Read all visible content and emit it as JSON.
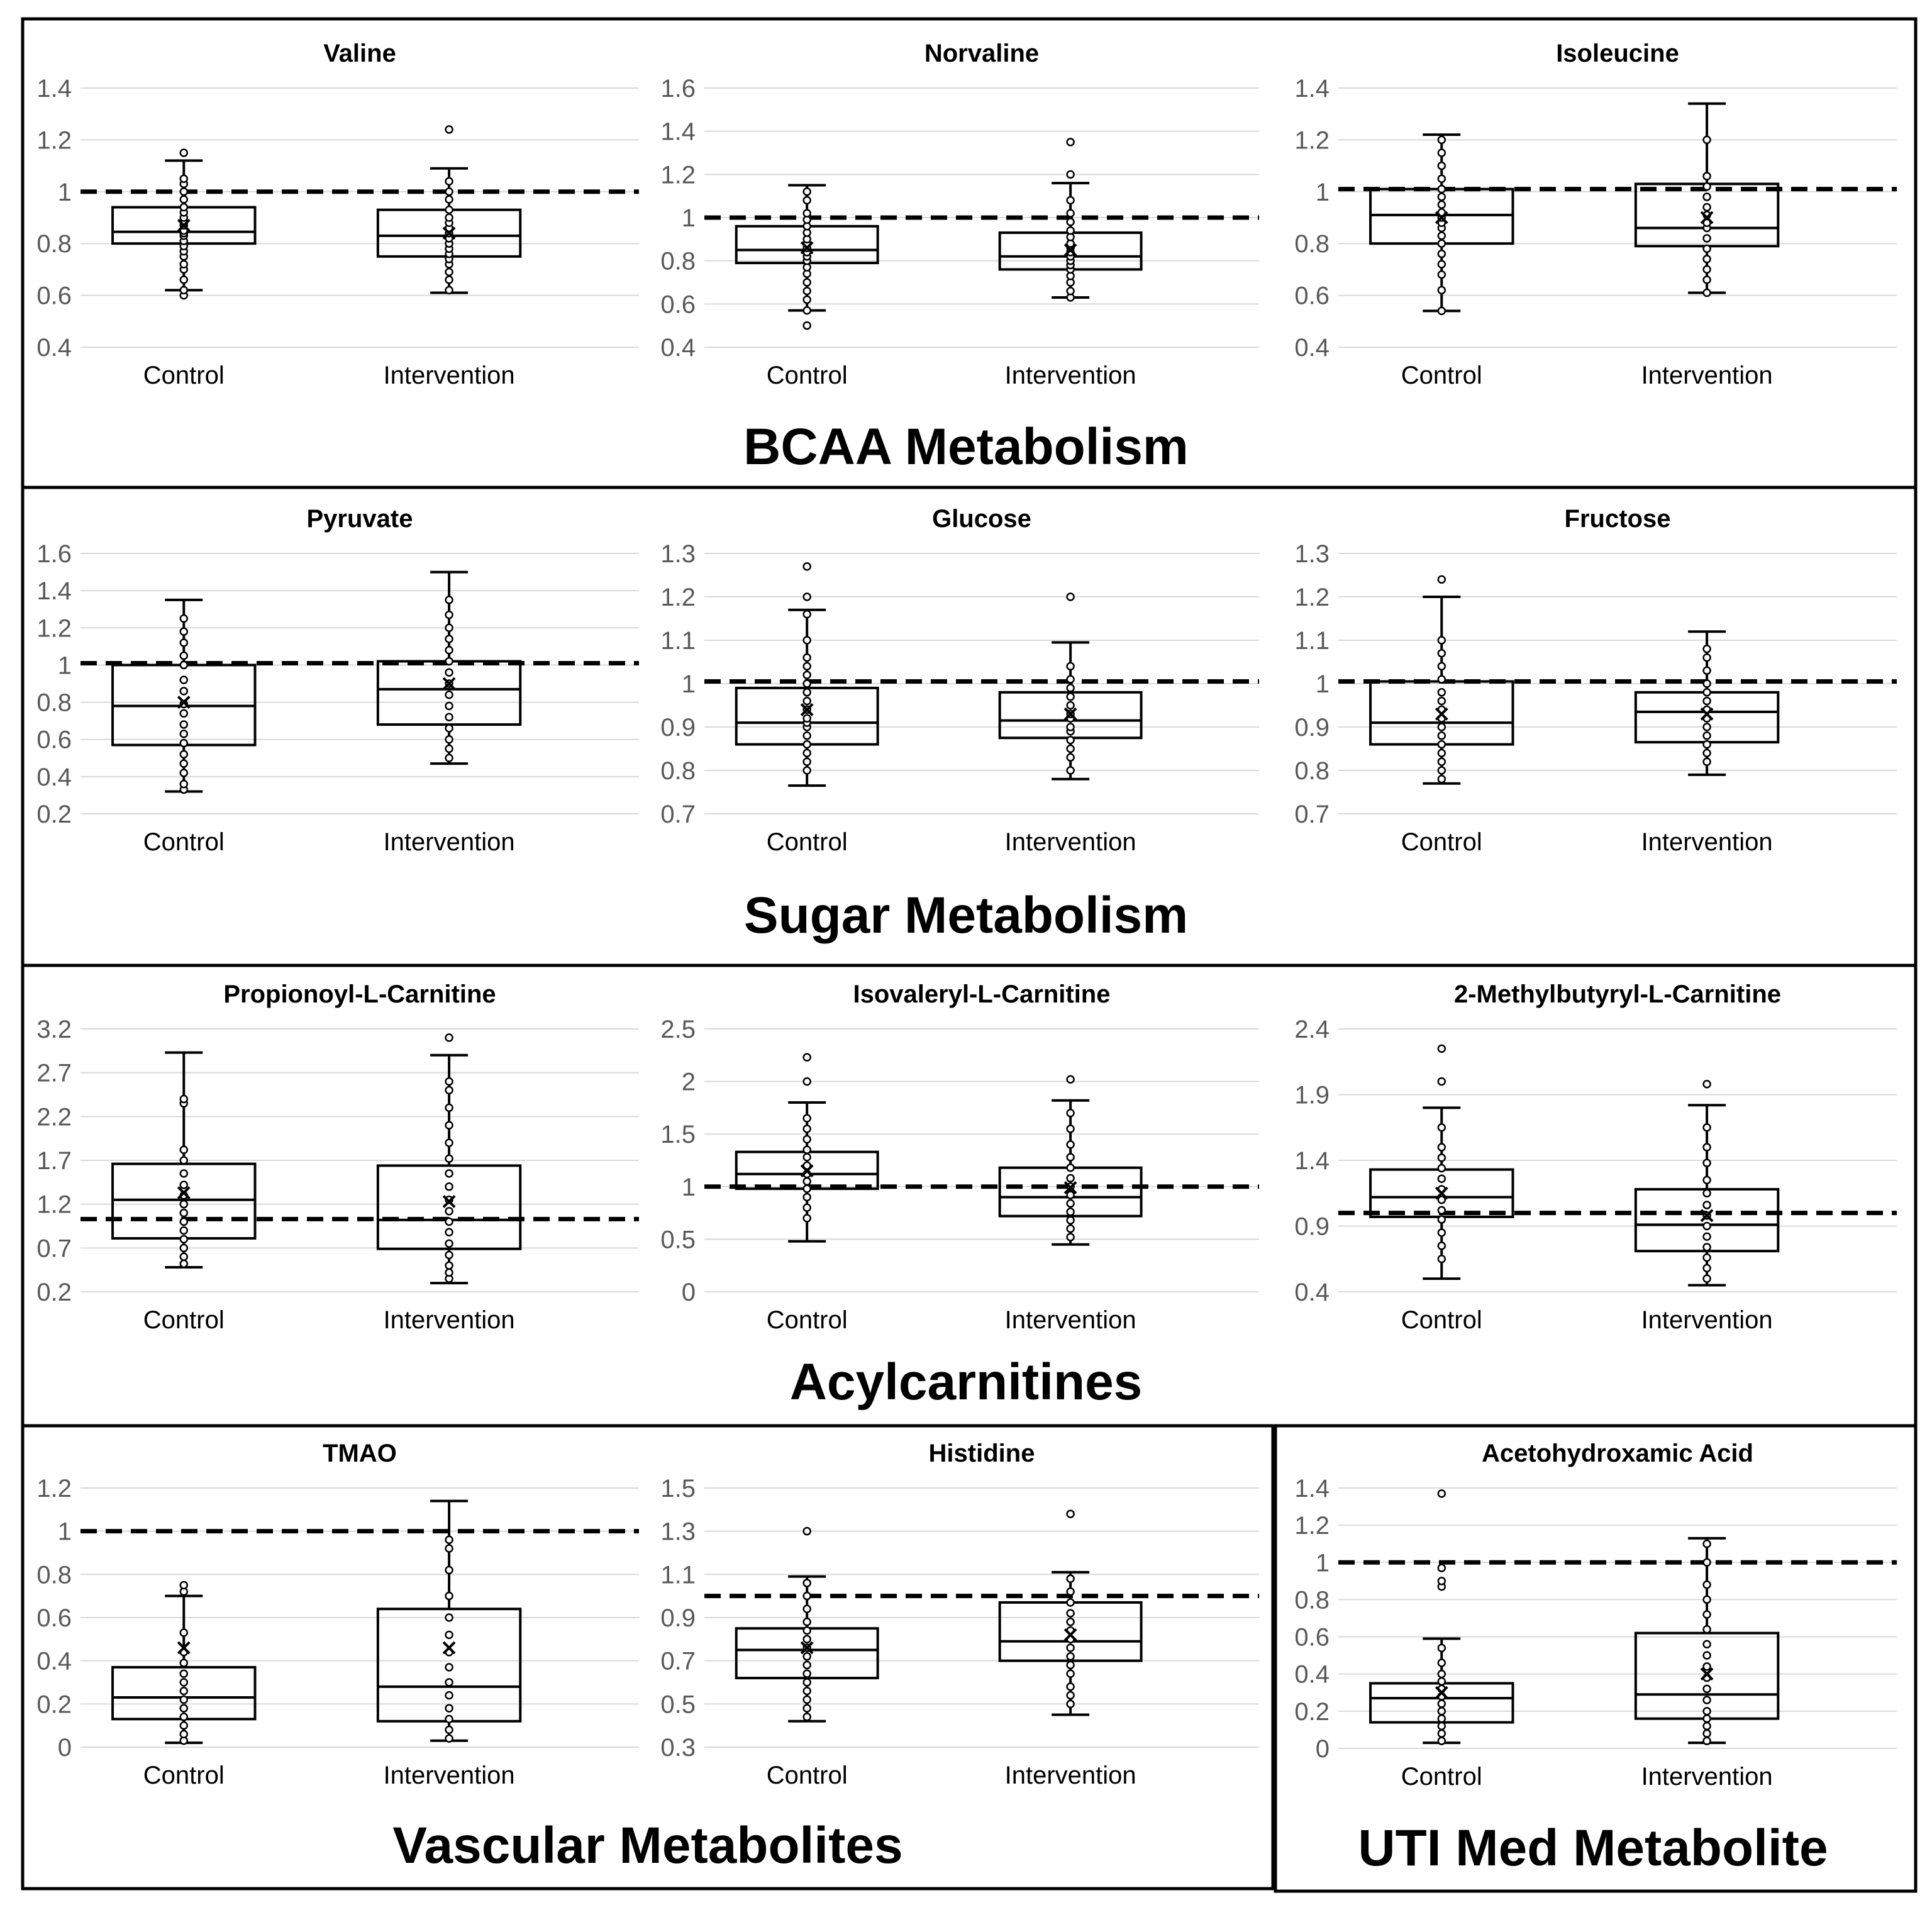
{
  "sections": [
    {
      "id": "bcaa",
      "title": "BCAA Metabolism"
    },
    {
      "id": "sugar",
      "title": "Sugar Metabolism"
    },
    {
      "id": "acyl",
      "title": "Acylcarnitines"
    },
    {
      "id": "vascular",
      "title": "Vascular Metabolites"
    },
    {
      "id": "uti",
      "title": "UTI Med Metabolite"
    }
  ],
  "chart_data": [
    {
      "type": "box",
      "section": "bcaa",
      "title": "Valine",
      "categories": [
        "Control",
        "Intervention"
      ],
      "yticks": [
        "0.4",
        "0.6",
        "0.8",
        "1",
        "1.2",
        "1.4"
      ],
      "ylim": [
        0.4,
        1.4
      ],
      "reference_line": 1,
      "boxes": [
        {
          "min": 0.62,
          "q1": 0.8,
          "median": 0.845,
          "q3": 0.94,
          "max": 1.12,
          "mean": 0.87,
          "points": [
            0.6,
            0.62,
            0.66,
            0.7,
            0.72,
            0.75,
            0.77,
            0.79,
            0.81,
            0.83,
            0.84,
            0.85,
            0.87,
            0.88,
            0.9,
            0.92,
            0.94,
            0.97,
            1.0,
            1.03,
            1.05,
            1.15
          ]
        },
        {
          "min": 0.61,
          "q1": 0.75,
          "median": 0.83,
          "q3": 0.93,
          "max": 1.09,
          "mean": 0.84,
          "points": [
            0.62,
            0.66,
            0.69,
            0.72,
            0.74,
            0.76,
            0.78,
            0.8,
            0.82,
            0.84,
            0.86,
            0.88,
            0.9,
            0.93,
            0.97,
            1.0,
            1.04,
            1.24
          ]
        }
      ]
    },
    {
      "type": "box",
      "section": "bcaa",
      "title": "Norvaline",
      "categories": [
        "Control",
        "Intervention"
      ],
      "yticks": [
        "0.4",
        "0.6",
        "0.8",
        "1",
        "1.2",
        "1.4",
        "1.6"
      ],
      "ylim": [
        0.4,
        1.6
      ],
      "reference_line": 1,
      "boxes": [
        {
          "min": 0.57,
          "q1": 0.79,
          "median": 0.85,
          "q3": 0.96,
          "max": 1.15,
          "mean": 0.86,
          "points": [
            0.5,
            0.57,
            0.62,
            0.66,
            0.7,
            0.74,
            0.77,
            0.8,
            0.82,
            0.84,
            0.86,
            0.88,
            0.9,
            0.93,
            0.96,
            0.99,
            1.02,
            1.08,
            1.12
          ]
        },
        {
          "min": 0.63,
          "q1": 0.76,
          "median": 0.82,
          "q3": 0.93,
          "max": 1.16,
          "mean": 0.85,
          "points": [
            0.63,
            0.66,
            0.7,
            0.73,
            0.76,
            0.78,
            0.8,
            0.82,
            0.84,
            0.86,
            0.88,
            0.91,
            0.94,
            0.98,
            1.02,
            1.08,
            1.2,
            1.35
          ]
        }
      ]
    },
    {
      "type": "box",
      "section": "bcaa",
      "title": "Isoleucine",
      "categories": [
        "Control",
        "Intervention"
      ],
      "yticks": [
        "0.4",
        "0.6",
        "0.8",
        "1",
        "1.2",
        "1.4"
      ],
      "ylim": [
        0.4,
        1.4
      ],
      "reference_line": 1.01,
      "boxes": [
        {
          "min": 0.54,
          "q1": 0.8,
          "median": 0.91,
          "q3": 1.01,
          "max": 1.22,
          "mean": 0.9,
          "points": [
            0.54,
            0.62,
            0.68,
            0.72,
            0.76,
            0.8,
            0.83,
            0.86,
            0.88,
            0.9,
            0.92,
            0.95,
            0.98,
            1.01,
            1.05,
            1.1,
            1.15,
            1.2
          ]
        },
        {
          "min": 0.61,
          "q1": 0.79,
          "median": 0.86,
          "q3": 1.03,
          "max": 1.34,
          "mean": 0.9,
          "points": [
            0.61,
            0.66,
            0.7,
            0.74,
            0.78,
            0.82,
            0.86,
            0.88,
            0.91,
            0.94,
            0.98,
            1.02,
            1.06,
            1.2
          ]
        }
      ]
    },
    {
      "type": "box",
      "section": "sugar",
      "title": "Pyruvate",
      "categories": [
        "Control",
        "Intervention"
      ],
      "yticks": [
        "0.2",
        "0.4",
        "0.6",
        "0.8",
        "1",
        "1.2",
        "1.4",
        "1.6"
      ],
      "ylim": [
        0.2,
        1.6
      ],
      "reference_line": 1.01,
      "boxes": [
        {
          "min": 0.32,
          "q1": 0.57,
          "median": 0.78,
          "q3": 1.0,
          "max": 1.35,
          "mean": 0.8,
          "points": [
            0.33,
            0.36,
            0.42,
            0.47,
            0.52,
            0.58,
            0.63,
            0.68,
            0.74,
            0.79,
            0.86,
            0.92,
            1.0,
            1.05,
            1.12,
            1.18,
            1.25
          ]
        },
        {
          "min": 0.47,
          "q1": 0.68,
          "median": 0.87,
          "q3": 1.02,
          "max": 1.5,
          "mean": 0.9,
          "points": [
            0.5,
            0.55,
            0.6,
            0.66,
            0.72,
            0.78,
            0.84,
            0.9,
            0.96,
            1.02,
            1.08,
            1.14,
            1.2,
            1.27,
            1.35
          ]
        }
      ]
    },
    {
      "type": "box",
      "section": "sugar",
      "title": "Glucose",
      "categories": [
        "Control",
        "Intervention"
      ],
      "yticks": [
        "0.7",
        "0.8",
        "0.9",
        "1",
        "1.1",
        "1.2",
        "1.3"
      ],
      "ylim": [
        0.7,
        1.3
      ],
      "reference_line": 1.005,
      "boxes": [
        {
          "min": 0.765,
          "q1": 0.86,
          "median": 0.91,
          "q3": 0.99,
          "max": 1.17,
          "mean": 0.94,
          "points": [
            0.8,
            0.82,
            0.84,
            0.86,
            0.88,
            0.9,
            0.91,
            0.92,
            0.94,
            0.96,
            0.98,
            1.0,
            1.02,
            1.04,
            1.06,
            1.1,
            1.16,
            1.2,
            1.27
          ]
        },
        {
          "min": 0.78,
          "q1": 0.875,
          "median": 0.915,
          "q3": 0.98,
          "max": 1.095,
          "mean": 0.93,
          "points": [
            0.8,
            0.83,
            0.85,
            0.87,
            0.89,
            0.9,
            0.92,
            0.93,
            0.95,
            0.97,
            0.99,
            1.01,
            1.04,
            1.2
          ]
        }
      ]
    },
    {
      "type": "box",
      "section": "sugar",
      "title": "Fructose",
      "categories": [
        "Control",
        "Intervention"
      ],
      "yticks": [
        "0.7",
        "0.8",
        "0.9",
        "1",
        "1.1",
        "1.2",
        "1.3"
      ],
      "ylim": [
        0.7,
        1.3
      ],
      "reference_line": 1.005,
      "boxes": [
        {
          "min": 0.77,
          "q1": 0.86,
          "median": 0.91,
          "q3": 1.005,
          "max": 1.2,
          "mean": 0.93,
          "points": [
            0.78,
            0.8,
            0.82,
            0.84,
            0.86,
            0.88,
            0.9,
            0.92,
            0.94,
            0.96,
            0.98,
            1.01,
            1.04,
            1.07,
            1.1,
            1.24
          ]
        },
        {
          "min": 0.79,
          "q1": 0.865,
          "median": 0.935,
          "q3": 0.98,
          "max": 1.12,
          "mean": 0.93,
          "points": [
            0.82,
            0.84,
            0.86,
            0.88,
            0.9,
            0.92,
            0.94,
            0.96,
            0.98,
            1.0,
            1.03,
            1.06,
            1.08
          ]
        }
      ]
    },
    {
      "type": "box",
      "section": "acyl",
      "title": "Propionoyl-L-Carnitine",
      "categories": [
        "Control",
        "Intervention"
      ],
      "yticks": [
        "0.2",
        "0.7",
        "1.2",
        "1.7",
        "2.2",
        "2.7",
        "3.2"
      ],
      "ylim": [
        0.2,
        3.2
      ],
      "reference_line": 1.03,
      "boxes": [
        {
          "min": 0.48,
          "q1": 0.81,
          "median": 1.25,
          "q3": 1.66,
          "max": 2.93,
          "mean": 1.33,
          "points": [
            0.52,
            0.6,
            0.7,
            0.8,
            0.9,
            1.0,
            1.1,
            1.2,
            1.3,
            1.42,
            1.55,
            1.7,
            1.82,
            2.35,
            2.4
          ]
        },
        {
          "min": 0.3,
          "q1": 0.69,
          "median": 1.02,
          "q3": 1.64,
          "max": 2.9,
          "mean": 1.23,
          "points": [
            0.35,
            0.42,
            0.5,
            0.62,
            0.75,
            0.88,
            1.0,
            1.12,
            1.25,
            1.4,
            1.55,
            1.72,
            1.9,
            2.1,
            2.3,
            2.5,
            2.6,
            3.1
          ]
        }
      ]
    },
    {
      "type": "box",
      "section": "acyl",
      "title": "Isovaleryl-L-Carnitine",
      "categories": [
        "Control",
        "Intervention"
      ],
      "yticks": [
        "0",
        "0.5",
        "1",
        "1.5",
        "2",
        "2.5"
      ],
      "ylim": [
        0,
        2.5
      ],
      "reference_line": 1.0,
      "boxes": [
        {
          "min": 0.48,
          "q1": 0.98,
          "median": 1.12,
          "q3": 1.33,
          "max": 1.8,
          "mean": 1.15,
          "points": [
            0.7,
            0.8,
            0.9,
            0.98,
            1.05,
            1.12,
            1.2,
            1.28,
            1.35,
            1.45,
            1.55,
            1.65,
            2.0,
            2.23
          ]
        },
        {
          "min": 0.45,
          "q1": 0.72,
          "median": 0.9,
          "q3": 1.18,
          "max": 1.82,
          "mean": 0.99,
          "points": [
            0.52,
            0.6,
            0.68,
            0.76,
            0.84,
            0.92,
            1.0,
            1.08,
            1.18,
            1.28,
            1.4,
            1.55,
            1.7,
            2.02
          ]
        }
      ]
    },
    {
      "type": "box",
      "section": "acyl",
      "title": "2-Methylbutyryl-L-Carnitine",
      "categories": [
        "Control",
        "Intervention"
      ],
      "yticks": [
        "0.4",
        "0.9",
        "1.4",
        "1.9",
        "2.4"
      ],
      "ylim": [
        0.4,
        2.4
      ],
      "reference_line": 1.0,
      "boxes": [
        {
          "min": 0.5,
          "q1": 0.97,
          "median": 1.12,
          "q3": 1.33,
          "max": 1.8,
          "mean": 1.15,
          "points": [
            0.65,
            0.75,
            0.85,
            0.95,
            1.02,
            1.1,
            1.18,
            1.26,
            1.34,
            1.42,
            1.5,
            1.65,
            2.0,
            2.25
          ]
        },
        {
          "min": 0.45,
          "q1": 0.71,
          "median": 0.91,
          "q3": 1.18,
          "max": 1.82,
          "mean": 0.98,
          "points": [
            0.5,
            0.58,
            0.66,
            0.74,
            0.82,
            0.9,
            0.98,
            1.06,
            1.15,
            1.25,
            1.38,
            1.5,
            1.65,
            1.98
          ]
        }
      ]
    },
    {
      "type": "box",
      "section": "vascular",
      "title": "TMAO",
      "categories": [
        "Control",
        "Intervention"
      ],
      "yticks": [
        "0",
        "0.2",
        "0.4",
        "0.6",
        "0.8",
        "1",
        "1.2"
      ],
      "ylim": [
        0,
        1.2
      ],
      "reference_line": 1.0,
      "boxes": [
        {
          "min": 0.02,
          "q1": 0.13,
          "median": 0.23,
          "q3": 0.37,
          "max": 0.7,
          "mean": 0.46,
          "points": [
            0.03,
            0.06,
            0.1,
            0.14,
            0.18,
            0.22,
            0.26,
            0.3,
            0.34,
            0.39,
            0.44,
            0.53,
            0.72,
            0.75
          ]
        },
        {
          "min": 0.03,
          "q1": 0.12,
          "median": 0.28,
          "q3": 0.64,
          "max": 1.14,
          "mean": 0.46,
          "points": [
            0.04,
            0.08,
            0.13,
            0.18,
            0.24,
            0.3,
            0.37,
            0.44,
            0.52,
            0.6,
            0.7,
            0.82,
            0.92,
            0.96
          ]
        }
      ]
    },
    {
      "type": "box",
      "section": "vascular",
      "title": "Histidine",
      "categories": [
        "Control",
        "Intervention"
      ],
      "yticks": [
        "0.3",
        "0.5",
        "0.7",
        "0.9",
        "1.1",
        "1.3",
        "1.5"
      ],
      "ylim": [
        0.3,
        1.5
      ],
      "reference_line": 1.0,
      "boxes": [
        {
          "min": 0.42,
          "q1": 0.62,
          "median": 0.75,
          "q3": 0.85,
          "max": 1.09,
          "mean": 0.76,
          "points": [
            0.44,
            0.48,
            0.52,
            0.56,
            0.6,
            0.64,
            0.68,
            0.72,
            0.76,
            0.8,
            0.84,
            0.88,
            0.94,
            1.0,
            1.06,
            1.3
          ]
        },
        {
          "min": 0.45,
          "q1": 0.7,
          "median": 0.79,
          "q3": 0.97,
          "max": 1.11,
          "mean": 0.82,
          "points": [
            0.5,
            0.54,
            0.58,
            0.64,
            0.68,
            0.72,
            0.76,
            0.8,
            0.84,
            0.88,
            0.92,
            0.97,
            1.02,
            1.08,
            1.38
          ]
        }
      ]
    },
    {
      "type": "box",
      "section": "uti",
      "title": "Acetohydroxamic Acid",
      "categories": [
        "Control",
        "Intervention"
      ],
      "yticks": [
        "0",
        "0.2",
        "0.4",
        "0.6",
        "0.8",
        "1",
        "1.2",
        "1.4"
      ],
      "ylim": [
        0,
        1.4
      ],
      "reference_line": 1.0,
      "boxes": [
        {
          "min": 0.03,
          "q1": 0.14,
          "median": 0.27,
          "q3": 0.35,
          "max": 0.59,
          "mean": 0.3,
          "points": [
            0.04,
            0.08,
            0.12,
            0.16,
            0.2,
            0.24,
            0.28,
            0.32,
            0.36,
            0.4,
            0.46,
            0.54,
            0.87,
            0.9,
            0.97,
            1.37
          ]
        },
        {
          "min": 0.03,
          "q1": 0.16,
          "median": 0.29,
          "q3": 0.62,
          "max": 1.13,
          "mean": 0.4,
          "points": [
            0.04,
            0.08,
            0.12,
            0.16,
            0.2,
            0.26,
            0.32,
            0.38,
            0.44,
            0.5,
            0.56,
            0.64,
            0.72,
            0.8,
            0.88,
            1.0,
            1.1
          ]
        }
      ]
    }
  ]
}
